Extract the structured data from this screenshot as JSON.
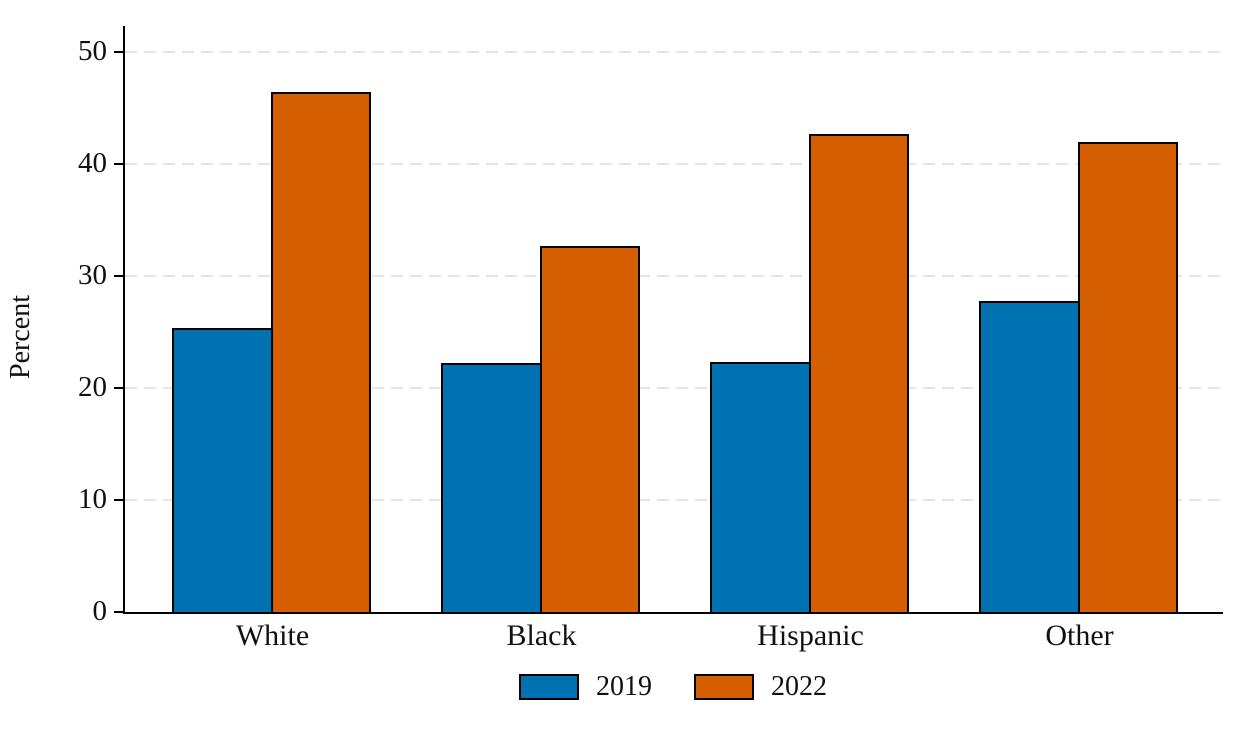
{
  "chart_data": {
    "type": "bar",
    "title": "",
    "xlabel": "",
    "ylabel": "Percent",
    "categories": [
      "White",
      "Black",
      "Hispanic",
      "Other"
    ],
    "series": [
      {
        "name": "2019",
        "color": "#0072B2",
        "values": [
          25.4,
          22.2,
          22.3,
          27.8
        ]
      },
      {
        "name": "2022",
        "color": "#D55E00",
        "values": [
          46.4,
          32.7,
          42.7,
          42.0
        ]
      }
    ],
    "ylim": [
      0,
      50
    ],
    "yticks": [
      0,
      10,
      20,
      30,
      40,
      50
    ],
    "grid": "horizontal-dashed",
    "grid_color": "#e4e4e4",
    "axis_color": "#000000",
    "bar_border_color": "#000000",
    "legend_position": "bottom"
  }
}
